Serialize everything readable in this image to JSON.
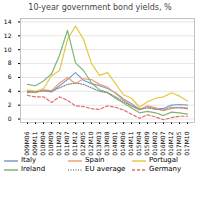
{
  "chart_data": {
    "type": "line",
    "title": "10-year government bond yields, %",
    "categories": [
      "2009M06",
      "2009M11",
      "2010M04",
      "2010M09",
      "2011M02",
      "2011M07",
      "2011M12",
      "2012M05",
      "2012M10",
      "2013M03",
      "2013M08",
      "2014M01",
      "2014M06",
      "2014M11",
      "2015M04",
      "2015M09",
      "2016M02",
      "2016M07",
      "2016M12",
      "2017M05",
      "2017M10"
    ],
    "series": [
      {
        "name": "Italy",
        "color": "#7e9ccd",
        "line_style": "solid",
        "values": [
          3.8,
          3.9,
          4.1,
          3.9,
          4.8,
          5.7,
          6.7,
          5.6,
          5.1,
          4.8,
          4.4,
          3.8,
          2.9,
          2.2,
          1.4,
          1.8,
          1.5,
          1.5,
          2.0,
          2.1,
          2.0
        ]
      },
      {
        "name": "Spain",
        "color": "#f0a070",
        "line_style": "solid",
        "values": [
          4.0,
          3.8,
          4.2,
          4.1,
          5.2,
          6.0,
          5.1,
          5.8,
          5.7,
          5.0,
          4.6,
          3.7,
          2.7,
          1.9,
          1.3,
          1.9,
          1.6,
          1.2,
          1.5,
          1.7,
          1.6
        ]
      },
      {
        "name": "Portugal",
        "color": "#e8c840",
        "line_style": "solid",
        "values": [
          4.2,
          4.0,
          4.4,
          6.2,
          7.0,
          11.5,
          13.4,
          11.5,
          8.0,
          6.3,
          6.7,
          5.1,
          3.5,
          3.0,
          1.7,
          2.5,
          3.0,
          3.2,
          3.8,
          3.3,
          2.6
        ]
      },
      {
        "name": "Ireland",
        "color": "#7ab87a",
        "line_style": "solid",
        "values": [
          5.0,
          4.8,
          5.5,
          6.5,
          9.2,
          12.8,
          8.1,
          7.0,
          5.2,
          4.2,
          3.8,
          3.0,
          2.3,
          1.6,
          0.9,
          1.1,
          0.9,
          0.5,
          1.0,
          0.9,
          0.7
        ]
      },
      {
        "name": "EU average",
        "color": "#888888",
        "line_style": "dotted",
        "values": [
          4.0,
          3.9,
          4.1,
          4.0,
          4.5,
          5.0,
          5.2,
          5.0,
          4.5,
          4.0,
          3.8,
          3.2,
          2.5,
          1.9,
          1.4,
          1.6,
          1.4,
          1.3,
          1.7,
          1.6,
          1.5
        ]
      },
      {
        "name": "Germany",
        "color": "#e07070",
        "line_style": "dashed",
        "values": [
          3.4,
          3.2,
          3.2,
          2.4,
          3.2,
          2.7,
          1.9,
          1.8,
          1.5,
          1.4,
          1.9,
          1.7,
          1.3,
          0.7,
          0.1,
          0.6,
          0.3,
          -0.1,
          0.2,
          0.4,
          0.4
        ]
      }
    ],
    "ylim": [
      -0.5,
      14.5
    ],
    "yticks": [
      0,
      2,
      4,
      6,
      8,
      10,
      12,
      14
    ],
    "grid": true,
    "legend": "bottom"
  }
}
